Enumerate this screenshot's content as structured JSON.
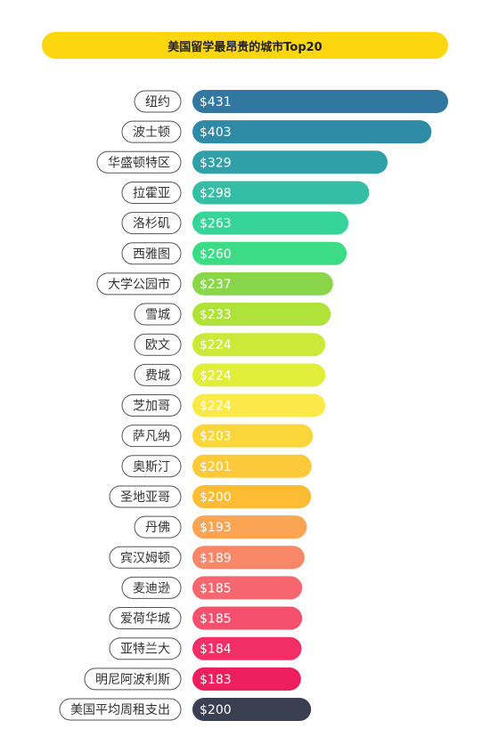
{
  "chart_data": {
    "type": "bar",
    "orientation": "horizontal",
    "title": "美国留学最昂贵的城市Top20",
    "categories": [
      "纽约",
      "波士顿",
      "华盛顿特区",
      "拉霍亚",
      "洛杉矶",
      "西雅图",
      "大学公园市",
      "雪城",
      "欧文",
      "费城",
      "芝加哥",
      "萨凡纳",
      "奥斯汀",
      "圣地亚哥",
      "丹佛",
      "宾汉姆顿",
      "麦迪逊",
      "爱荷华城",
      "亚特兰大",
      "明尼阿波利斯",
      "美国平均周租支出"
    ],
    "values": [
      431,
      403,
      329,
      298,
      263,
      260,
      237,
      233,
      224,
      224,
      224,
      203,
      201,
      200,
      193,
      189,
      185,
      185,
      184,
      183,
      200
    ],
    "value_labels": [
      "$431",
      "$403",
      "$329",
      "$298",
      "$263",
      "$260",
      "$237",
      "$233",
      "$224",
      "$224",
      "$224",
      "$203",
      "$201",
      "$200",
      "$193",
      "$189",
      "$185",
      "$185",
      "$184",
      "$183",
      "$200"
    ],
    "bar_colors": [
      "#3277a0",
      "#2f8aa6",
      "#2f9fa8",
      "#35bea5",
      "#36d499",
      "#3cdc86",
      "#8ad64a",
      "#b0e33a",
      "#cce838",
      "#e0ee3a",
      "#fbe94a",
      "#fbd63a",
      "#fcc93a",
      "#fcbd35",
      "#fba454",
      "#f88768",
      "#f6666f",
      "#f44f6d",
      "#f22e66",
      "#ec1e5d",
      "#3b3f52"
    ],
    "xlim": [
      0,
      431
    ],
    "grid": false,
    "legend": "none"
  }
}
